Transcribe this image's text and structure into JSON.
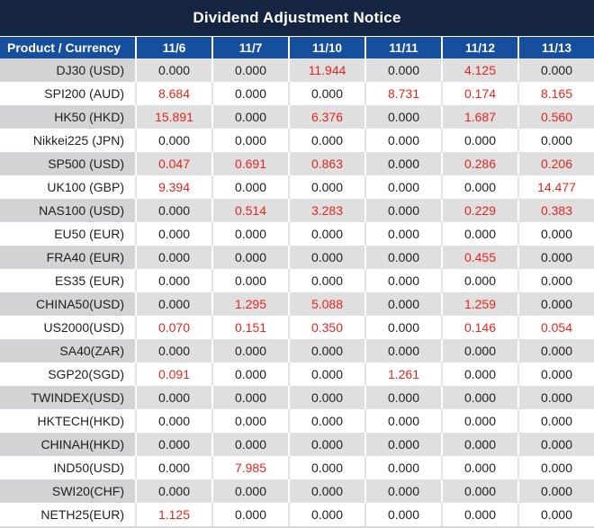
{
  "title": "Dividend Adjustment Notice",
  "colors": {
    "title_bar_navy": "#152440",
    "header_blue": "#164f9e",
    "band_gray_product": "#d2d3d4",
    "band_gray_value": "#dfdfdf",
    "value_black": "#1f1f1f",
    "value_red": "#e8241d"
  },
  "table": {
    "product_header": "Product / Currency",
    "date_headers": [
      "11/6",
      "11/7",
      "11/10",
      "11/11",
      "11/12",
      "11/13"
    ],
    "rows": [
      {
        "product": "DJ30 (USD)",
        "values": [
          "0.000",
          "0.000",
          "11.944",
          "0.000",
          "4.125",
          "0.000"
        ],
        "red": [
          false,
          false,
          true,
          false,
          true,
          false
        ]
      },
      {
        "product": "SPI200 (AUD)",
        "values": [
          "8.684",
          "0.000",
          "0.000",
          "8.731",
          "0.174",
          "8.165"
        ],
        "red": [
          true,
          false,
          false,
          true,
          true,
          true
        ]
      },
      {
        "product": "HK50 (HKD)",
        "values": [
          "15.891",
          "0.000",
          "6.376",
          "0.000",
          "1.687",
          "0.560"
        ],
        "red": [
          true,
          false,
          true,
          false,
          true,
          true
        ]
      },
      {
        "product": "Nikkei225 (JPN)",
        "values": [
          "0.000",
          "0.000",
          "0.000",
          "0.000",
          "0.000",
          "0.000"
        ],
        "red": [
          false,
          false,
          false,
          false,
          false,
          false
        ]
      },
      {
        "product": "SP500 (USD)",
        "values": [
          "0.047",
          "0.691",
          "0.863",
          "0.000",
          "0.286",
          "0.206"
        ],
        "red": [
          true,
          true,
          true,
          false,
          true,
          true
        ]
      },
      {
        "product": "UK100 (GBP)",
        "values": [
          "9.394",
          "0.000",
          "0.000",
          "0.000",
          "0.000",
          "14.477"
        ],
        "red": [
          true,
          false,
          false,
          false,
          false,
          true
        ]
      },
      {
        "product": "NAS100 (USD)",
        "values": [
          "0.000",
          "0.514",
          "3.283",
          "0.000",
          "0.229",
          "0.383"
        ],
        "red": [
          false,
          true,
          true,
          false,
          true,
          true
        ]
      },
      {
        "product": "EU50 (EUR)",
        "values": [
          "0.000",
          "0.000",
          "0.000",
          "0.000",
          "0.000",
          "0.000"
        ],
        "red": [
          false,
          false,
          false,
          false,
          false,
          false
        ]
      },
      {
        "product": "FRA40 (EUR)",
        "values": [
          "0.000",
          "0.000",
          "0.000",
          "0.000",
          "0.455",
          "0.000"
        ],
        "red": [
          false,
          false,
          false,
          false,
          true,
          false
        ]
      },
      {
        "product": "ES35 (EUR)",
        "values": [
          "0.000",
          "0.000",
          "0.000",
          "0.000",
          "0.000",
          "0.000"
        ],
        "red": [
          false,
          false,
          false,
          false,
          false,
          false
        ]
      },
      {
        "product": "CHINA50(USD)",
        "values": [
          "0.000",
          "1.295",
          "5.088",
          "0.000",
          "1.259",
          "0.000"
        ],
        "red": [
          false,
          true,
          true,
          false,
          true,
          false
        ]
      },
      {
        "product": "US2000(USD)",
        "values": [
          "0.070",
          "0.151",
          "0.350",
          "0.000",
          "0.146",
          "0.054"
        ],
        "red": [
          true,
          true,
          true,
          false,
          true,
          true
        ]
      },
      {
        "product": "SA40(ZAR)",
        "values": [
          "0.000",
          "0.000",
          "0.000",
          "0.000",
          "0.000",
          "0.000"
        ],
        "red": [
          false,
          false,
          false,
          false,
          false,
          false
        ]
      },
      {
        "product": "SGP20(SGD)",
        "values": [
          "0.091",
          "0.000",
          "0.000",
          "1.261",
          "0.000",
          "0.000"
        ],
        "red": [
          true,
          false,
          false,
          true,
          false,
          false
        ]
      },
      {
        "product": "TWINDEX(USD)",
        "values": [
          "0.000",
          "0.000",
          "0.000",
          "0.000",
          "0.000",
          "0.000"
        ],
        "red": [
          false,
          false,
          false,
          false,
          false,
          false
        ]
      },
      {
        "product": "HKTECH(HKD)",
        "values": [
          "0.000",
          "0.000",
          "0.000",
          "0.000",
          "0.000",
          "0.000"
        ],
        "red": [
          false,
          false,
          false,
          false,
          false,
          false
        ]
      },
      {
        "product": "CHINAH(HKD)",
        "values": [
          "0.000",
          "0.000",
          "0.000",
          "0.000",
          "0.000",
          "0.000"
        ],
        "red": [
          false,
          false,
          false,
          false,
          false,
          false
        ]
      },
      {
        "product": "IND50(USD)",
        "values": [
          "0.000",
          "7.985",
          "0.000",
          "0.000",
          "0.000",
          "0.000"
        ],
        "red": [
          false,
          true,
          false,
          false,
          false,
          false
        ]
      },
      {
        "product": "SWI20(CHF)",
        "values": [
          "0.000",
          "0.000",
          "0.000",
          "0.000",
          "0.000",
          "0.000"
        ],
        "red": [
          false,
          false,
          false,
          false,
          false,
          false
        ]
      },
      {
        "product": "NETH25(EUR)",
        "values": [
          "1.125",
          "0.000",
          "0.000",
          "0.000",
          "0.000",
          "0.000"
        ],
        "red": [
          true,
          false,
          false,
          false,
          false,
          false
        ]
      }
    ]
  }
}
